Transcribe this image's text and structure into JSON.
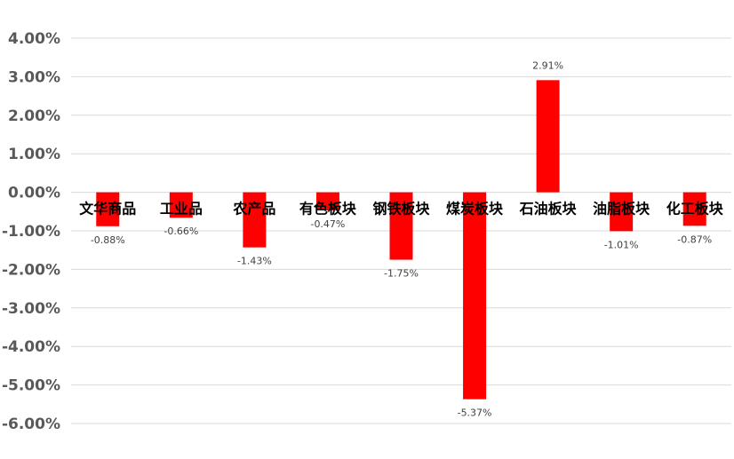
{
  "chart_data": {
    "type": "bar",
    "categories": [
      "文华商品",
      "工业品",
      "农产品",
      "有色板块",
      "钢铁板块",
      "煤炭板块",
      "石油板块",
      "油脂板块",
      "化工板块"
    ],
    "values": [
      -0.88,
      -0.66,
      -1.43,
      -0.47,
      -1.75,
      -5.37,
      2.91,
      -1.01,
      -0.87
    ],
    "data_labels": [
      "-0.88%",
      "-0.66%",
      "-1.43%",
      "-0.47%",
      "-1.75%",
      "-5.37%",
      "2.91%",
      "-1.01%",
      "-0.87%"
    ],
    "y_ticks": [
      4,
      3,
      2,
      1,
      0,
      -1,
      -2,
      -3,
      -4,
      -5,
      -6
    ],
    "y_tick_labels": [
      "4.00%",
      "3.00%",
      "2.00%",
      "1.00%",
      "0.00%",
      "-1.00%",
      "-2.00%",
      "-3.00%",
      "-4.00%",
      "-5.00%",
      "-6.00%"
    ],
    "ylim": [
      -6,
      4
    ],
    "title": "",
    "xlabel": "",
    "ylabel": "",
    "grid": true,
    "legend": "none",
    "bar_color": "#ff0000"
  }
}
